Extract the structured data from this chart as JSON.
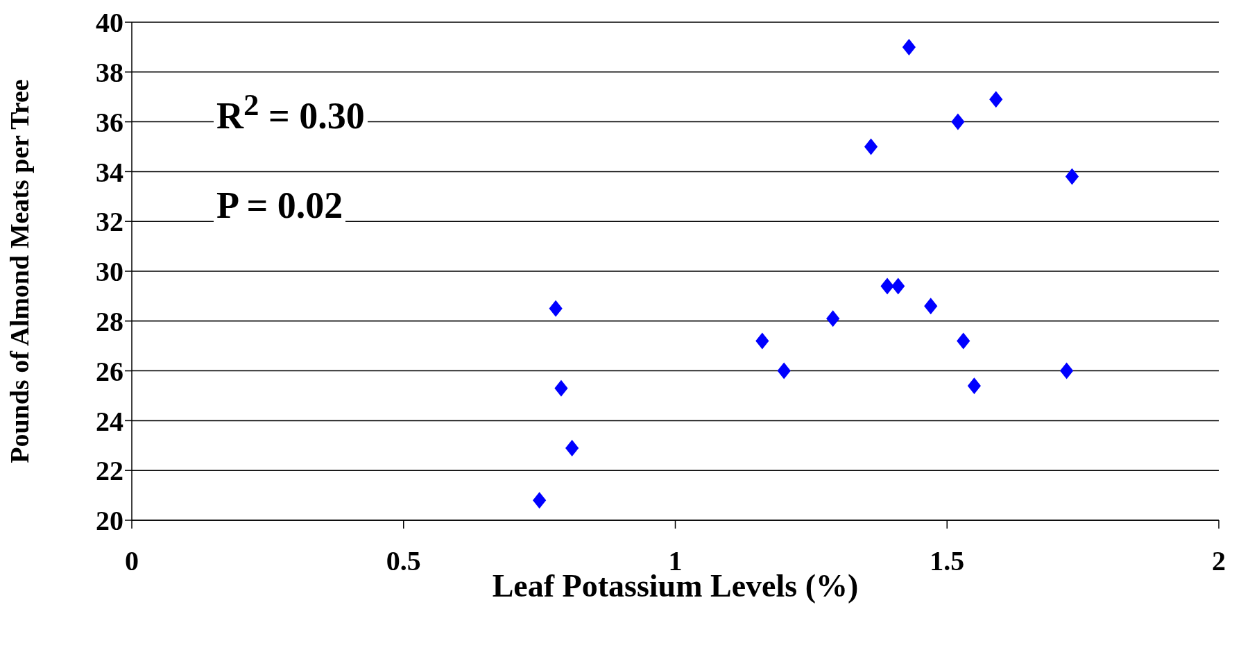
{
  "chart_data": {
    "type": "scatter",
    "xlabel": "Leaf Potassium Levels (%)",
    "ylabel": "Pounds of Almond Meats per Tree",
    "annotations": [
      "R$^{2}$ = 0.30",
      "P = 0.02"
    ],
    "x": [
      0.75,
      0.78,
      0.79,
      0.81,
      1.16,
      1.2,
      1.29,
      1.36,
      1.39,
      1.41,
      1.43,
      1.47,
      1.52,
      1.53,
      1.55,
      1.59,
      1.72,
      1.73
    ],
    "series": [
      {
        "color": "#0000ff",
        "values": [
          20.8,
          28.5,
          25.3,
          22.9,
          27.2,
          26,
          28.1,
          35,
          29.4,
          29.4,
          39,
          28.6,
          36,
          27.2,
          25.4,
          36.9,
          26,
          33.8
        ]
      }
    ],
    "xlim": [
      0,
      2
    ],
    "xticks": [
      0,
      0.5,
      1,
      1.5,
      2
    ],
    "ylim": [
      20,
      40
    ],
    "yticks": [
      20,
      22,
      24,
      26,
      28,
      30,
      32,
      34,
      36,
      38,
      40
    ],
    "grid": "y",
    "marker": "diamond",
    "legend": false
  }
}
